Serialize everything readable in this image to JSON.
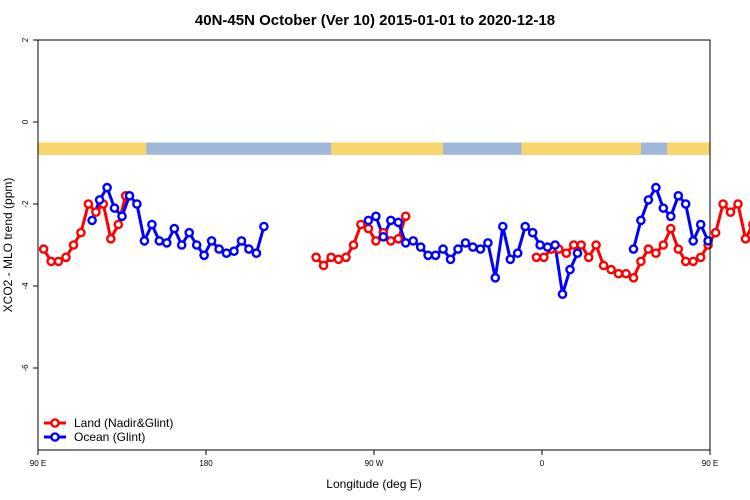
{
  "chart_data": {
    "type": "line",
    "title": "40N-45N October (Ver 10)   2015-01-01 to 2020-12-18",
    "xlabel": "Longitude (deg E)",
    "ylabel": "XCO2 - MLO trend (ppm)",
    "xlim": [
      90,
      450
    ],
    "ylim": [
      -8,
      2
    ],
    "x_tick_values": [
      90,
      180,
      270,
      360,
      450,
      540
    ],
    "x_tick_labels": [
      "90 E",
      "180",
      "90 W",
      "0",
      "90 E",
      "180"
    ],
    "y_tick_values": [
      2,
      0,
      -2,
      -4,
      -6
    ],
    "y_tick_labels": [
      "2",
      "0",
      "-2",
      "-4",
      "-6"
    ],
    "grid": false,
    "legend_position": "bottom-left",
    "land_ocean_band": {
      "y_range": [
        -0.5,
        -0.8
      ],
      "land_color": "#f9d66b",
      "ocean_color": "#9fb8d9",
      "land_x_ranges": [
        [
          90,
          148
        ],
        [
          247,
          307
        ],
        [
          349,
          413
        ],
        [
          427,
          508
        ],
        [
          562,
          630
        ]
      ]
    },
    "series": [
      {
        "name": "Land (Nadir&Glint)",
        "color": "#ff0000",
        "segments": [
          [
            [
              93,
              -3.1
            ],
            [
              97,
              -3.4
            ],
            [
              101,
              -3.4
            ],
            [
              105,
              -3.3
            ],
            [
              109,
              -3.0
            ],
            [
              113,
              -2.7
            ],
            [
              117,
              -2.0
            ],
            [
              121,
              -2.2
            ],
            [
              125,
              -2.0
            ],
            [
              129,
              -2.85
            ],
            [
              133,
              -2.5
            ],
            [
              137,
              -1.8
            ]
          ],
          [
            [
              239,
              -3.3
            ],
            [
              243,
              -3.5
            ],
            [
              247,
              -3.3
            ],
            [
              251,
              -3.35
            ],
            [
              255,
              -3.3
            ],
            [
              259,
              -3.0
            ],
            [
              263,
              -2.5
            ],
            [
              267,
              -2.6
            ],
            [
              271,
              -2.9
            ],
            [
              275,
              -2.7
            ],
            [
              279,
              -2.9
            ],
            [
              283,
              -2.85
            ],
            [
              287,
              -2.3
            ]
          ],
          [
            [
              357,
              -3.3
            ],
            [
              361,
              -3.3
            ],
            [
              365,
              -3.1
            ],
            [
              369,
              -3.1
            ],
            [
              373,
              -3.2
            ],
            [
              377,
              -3.0
            ],
            [
              381,
              -3.0
            ],
            [
              385,
              -3.3
            ],
            [
              389,
              -3.0
            ],
            [
              393,
              -3.5
            ],
            [
              397,
              -3.6
            ],
            [
              401,
              -3.7
            ],
            [
              405,
              -3.7
            ],
            [
              409,
              -3.8
            ],
            [
              413,
              -3.4
            ],
            [
              417,
              -3.1
            ],
            [
              421,
              -3.2
            ],
            [
              425,
              -3.0
            ],
            [
              429,
              -2.6
            ],
            [
              433,
              -3.1
            ],
            [
              437,
              -3.4
            ],
            [
              441,
              -3.4
            ],
            [
              445,
              -3.3
            ],
            [
              449,
              -3.0
            ],
            [
              453,
              -2.7
            ],
            [
              457,
              -2.0
            ],
            [
              461,
              -2.2
            ],
            [
              465,
              -2.0
            ],
            [
              469,
              -2.85
            ],
            [
              473,
              -2.5
            ],
            [
              477,
              -1.8
            ]
          ]
        ]
      },
      {
        "name": "Ocean (Glint)",
        "color": "#0000ff",
        "segments": [
          [
            [
              119,
              -2.4
            ],
            [
              123,
              -1.9
            ],
            [
              127,
              -1.6
            ],
            [
              131,
              -2.1
            ],
            [
              135,
              -2.3
            ],
            [
              139,
              -1.8
            ],
            [
              143,
              -2.0
            ],
            [
              147,
              -2.9
            ],
            [
              151,
              -2.5
            ],
            [
              155,
              -2.9
            ],
            [
              159,
              -2.95
            ],
            [
              163,
              -2.6
            ],
            [
              167,
              -3.0
            ],
            [
              171,
              -2.7
            ],
            [
              175,
              -3.0
            ],
            [
              179,
              -3.25
            ],
            [
              183,
              -2.9
            ],
            [
              187,
              -3.1
            ],
            [
              191,
              -3.2
            ],
            [
              195,
              -3.15
            ],
            [
              199,
              -2.9
            ],
            [
              203,
              -3.1
            ],
            [
              207,
              -3.2
            ],
            [
              211,
              -2.55
            ]
          ],
          [
            [
              267,
              -2.4
            ],
            [
              271,
              -2.3
            ],
            [
              275,
              -2.8
            ],
            [
              279,
              -2.4
            ],
            [
              283,
              -2.45
            ],
            [
              287,
              -2.95
            ],
            [
              291,
              -2.9
            ],
            [
              295,
              -3.05
            ],
            [
              299,
              -3.25
            ],
            [
              303,
              -3.25
            ],
            [
              307,
              -3.1
            ],
            [
              311,
              -3.35
            ],
            [
              315,
              -3.1
            ],
            [
              319,
              -2.95
            ],
            [
              323,
              -3.05
            ],
            [
              327,
              -3.1
            ],
            [
              331,
              -2.95
            ],
            [
              335,
              -3.8
            ],
            [
              339,
              -2.55
            ],
            [
              343,
              -3.35
            ],
            [
              347,
              -3.2
            ],
            [
              351,
              -2.55
            ],
            [
              355,
              -2.7
            ],
            [
              359,
              -3.0
            ],
            [
              363,
              -3.05
            ],
            [
              367,
              -3.0
            ],
            [
              371,
              -4.2
            ],
            [
              375,
              -3.6
            ],
            [
              379,
              -3.2
            ]
          ],
          [
            [
              409,
              -3.1
            ],
            [
              413,
              -2.4
            ],
            [
              417,
              -1.9
            ],
            [
              421,
              -1.6
            ],
            [
              425,
              -2.1
            ],
            [
              429,
              -2.3
            ],
            [
              433,
              -1.8
            ],
            [
              437,
              -2.0
            ],
            [
              441,
              -2.9
            ],
            [
              445,
              -2.5
            ],
            [
              449,
              -2.9
            ]
          ]
        ]
      }
    ]
  }
}
